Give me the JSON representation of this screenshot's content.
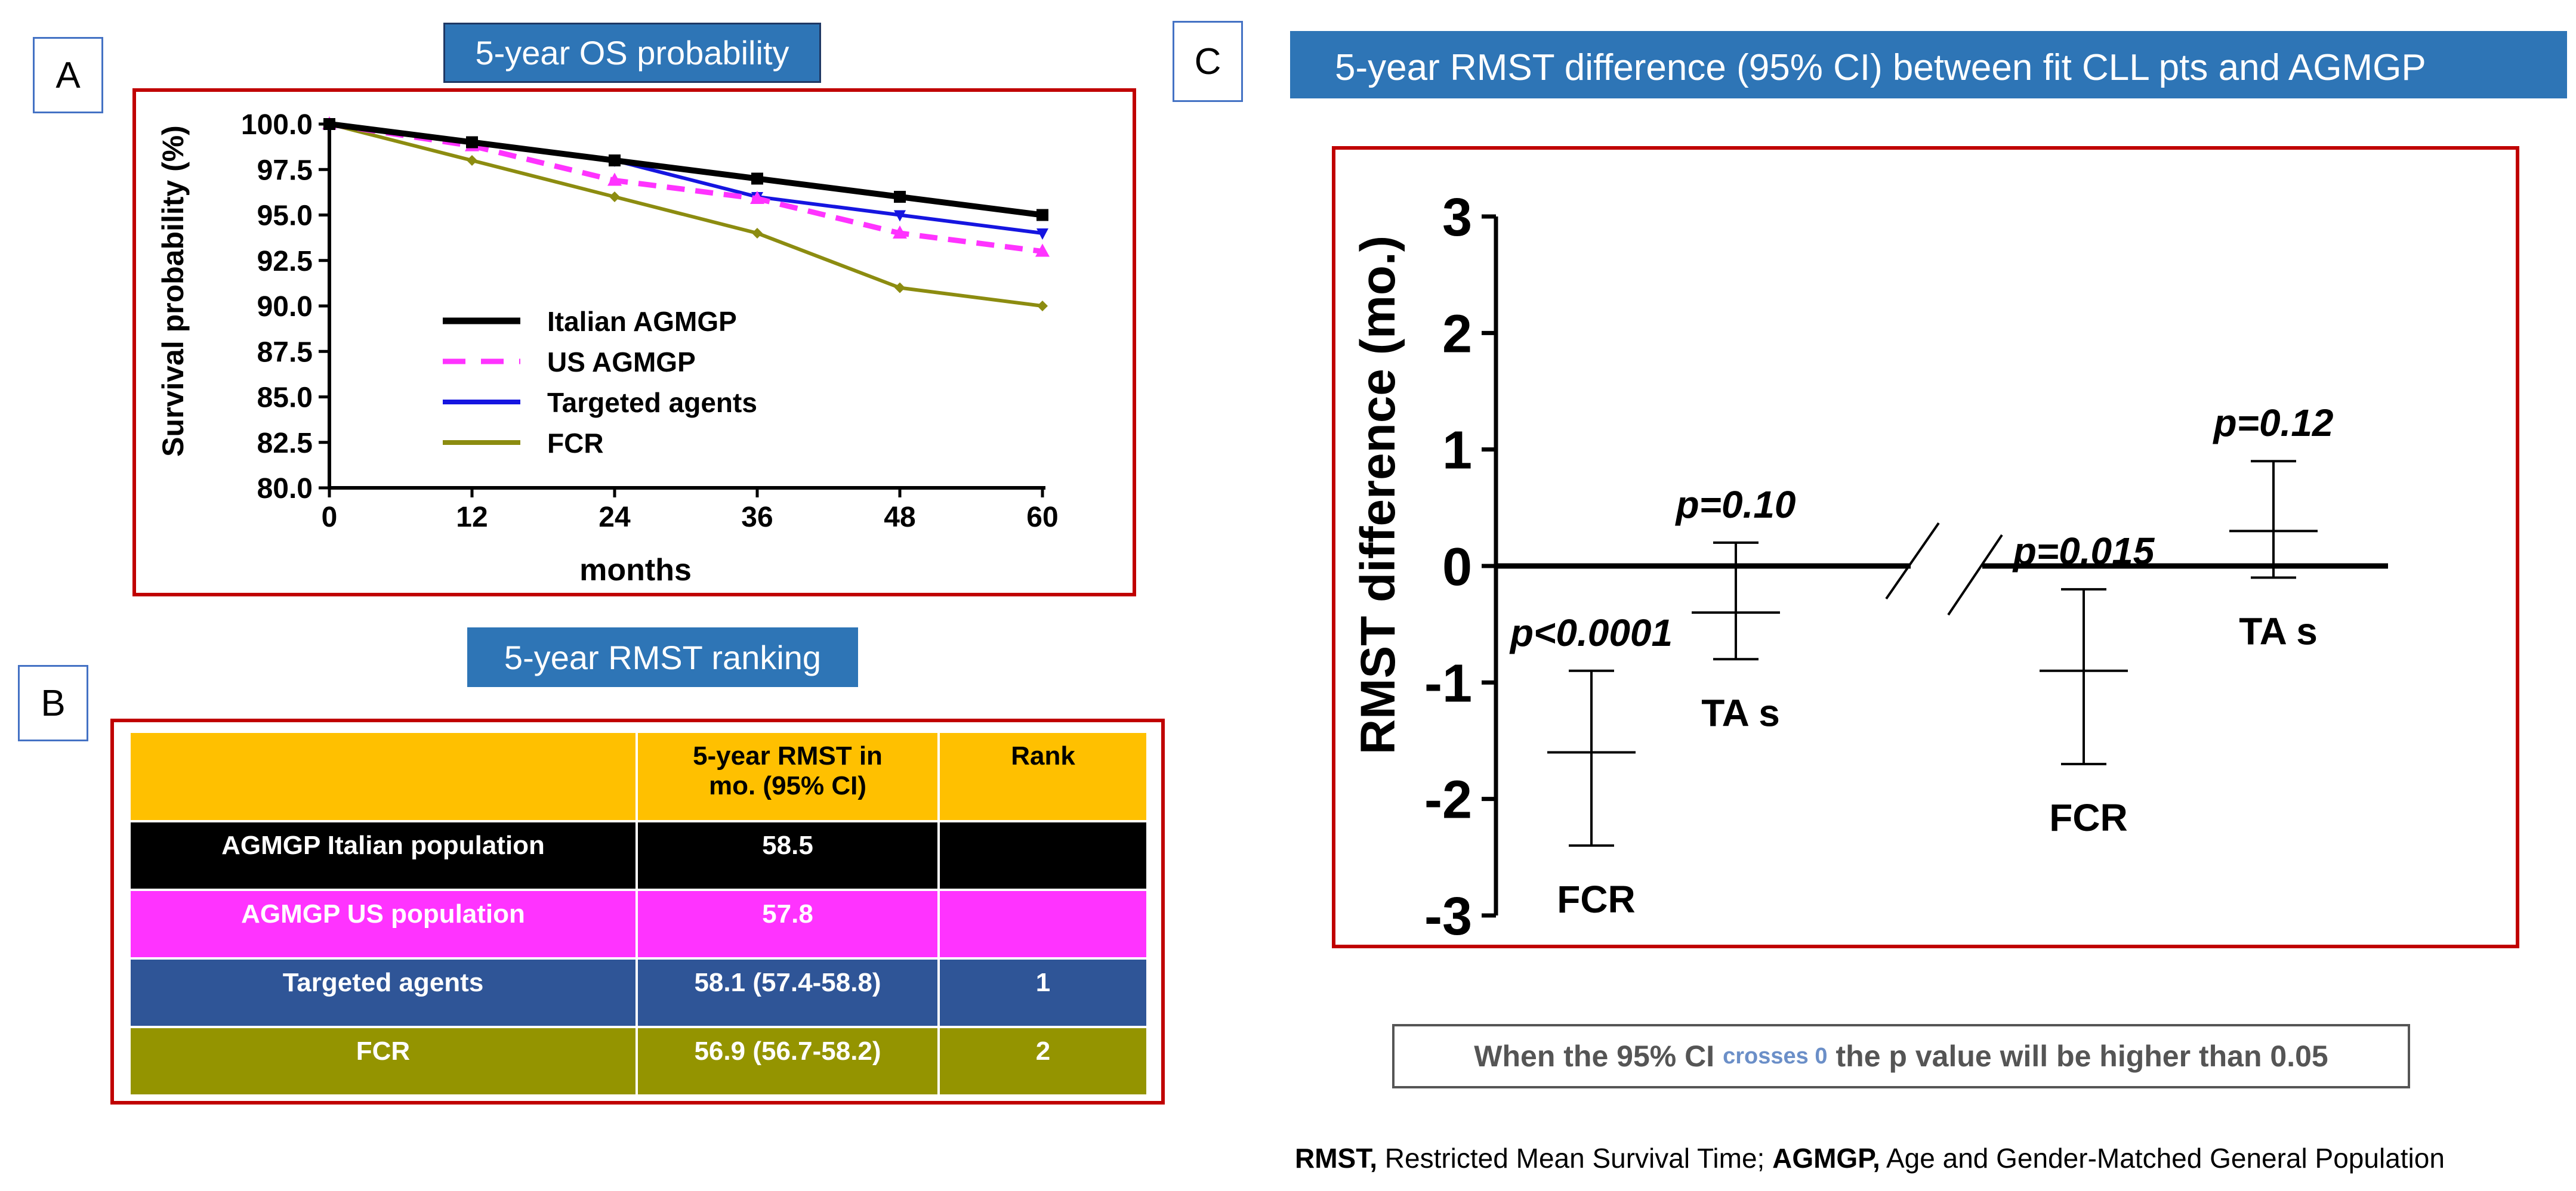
{
  "panel_labels": {
    "a": "A",
    "b": "B",
    "c": "C"
  },
  "panel_a": {
    "title": "5-year OS probability"
  },
  "panel_b": {
    "title": "5-year RMST  ranking"
  },
  "panel_c": {
    "title": "5-year RMST  difference (95% CI) between fit CLL pts and AGMGP"
  },
  "colors": {
    "italian": "#000000",
    "us": "#ff33ff",
    "targeted": "#1515e0",
    "fcr": "#8c8c10",
    "table_header": "#ffc000",
    "table_targeted": "#2f5597",
    "table_fcr": "#949400",
    "frame": "#c00000",
    "title_bg": "#2e75b6"
  },
  "chart_data": [
    {
      "type": "line",
      "title": "5-year OS probability",
      "xlabel": "months",
      "ylabel": "Survival probability (%)",
      "x": [
        0,
        12,
        24,
        36,
        48,
        60
      ],
      "xticks": [
        "0",
        "12",
        "24",
        "36",
        "48",
        "60"
      ],
      "ylim": [
        80,
        100
      ],
      "yticks": [
        "100.0",
        "97.5",
        "95.0",
        "92.5",
        "90.0",
        "87.5",
        "85.0",
        "82.5",
        "80.0"
      ],
      "legend_position": "center-left",
      "series": [
        {
          "name": "Italian AGMGP",
          "values": [
            100,
            99,
            98,
            97,
            96,
            95
          ],
          "color_key": "italian",
          "style": "solid",
          "marker": "square"
        },
        {
          "name": "US AGMGP",
          "values": [
            100,
            98.8,
            96.9,
            95.9,
            94,
            93
          ],
          "color_key": "us",
          "style": "dashed",
          "marker": "triangle"
        },
        {
          "name": "Targeted agents",
          "values": [
            100,
            99,
            98,
            96,
            95,
            94
          ],
          "color_key": "targeted",
          "style": "solid",
          "marker": "triangle-down"
        },
        {
          "name": "FCR",
          "values": [
            100,
            98,
            96,
            94,
            91,
            90
          ],
          "color_key": "fcr",
          "style": "solid",
          "marker": "diamond"
        }
      ]
    },
    {
      "type": "table",
      "title": "5-year RMST  ranking",
      "header": [
        "",
        "5-year RMST in mo. (95% CI)",
        "Rank"
      ],
      "rows": [
        {
          "label": "AGMGP Italian population",
          "rmst": "58.5",
          "rank": ""
        },
        {
          "label": "AGMGP US population",
          "rmst": "57.8",
          "rank": ""
        },
        {
          "label": "Targeted agents",
          "rmst": "58.1  (57.4-58.8)",
          "rank": "1"
        },
        {
          "label": "FCR",
          "rmst": "56.9  (56.7-58.2)",
          "rank": "2"
        }
      ]
    },
    {
      "type": "scatter",
      "title": "5-year RMST  difference (95% CI) between fit CLL pts and AGMGP",
      "ylabel": "RMST difference (mo.)",
      "ylim": [
        -3,
        3
      ],
      "yticks": [
        "3",
        "2",
        "1",
        "0",
        "-1",
        "-2",
        "-3"
      ],
      "groups": [
        {
          "name": "Italian AGMGP",
          "points": [
            {
              "label": "FCR",
              "estimate": -1.6,
              "ci": [
                -2.4,
                -0.9
              ],
              "p": "p<0.0001"
            },
            {
              "label": "TA s",
              "estimate": -0.4,
              "ci": [
                -0.8,
                0.2
              ],
              "p": "p=0.10"
            }
          ]
        },
        {
          "name": "US AGMGP",
          "points": [
            {
              "label": "FCR",
              "estimate": -0.9,
              "ci": [
                -1.7,
                -0.2
              ],
              "p": "p=0.015"
            },
            {
              "label": "TA s",
              "estimate": 0.3,
              "ci": [
                -0.1,
                0.9
              ],
              "p": "p=0.12"
            }
          ]
        }
      ]
    }
  ],
  "note": {
    "before": "When the 95% CI",
    "highlight": "crosses 0",
    "after": "the p value will be higher than 0.05"
  },
  "footnote": {
    "rmst_abbr": "RMST,",
    "rmst_text": " Restricted Mean Survival Time; ",
    "agmgp_abbr": "AGMGP,",
    "agmgp_text": " Age and Gender-Matched General Population"
  }
}
